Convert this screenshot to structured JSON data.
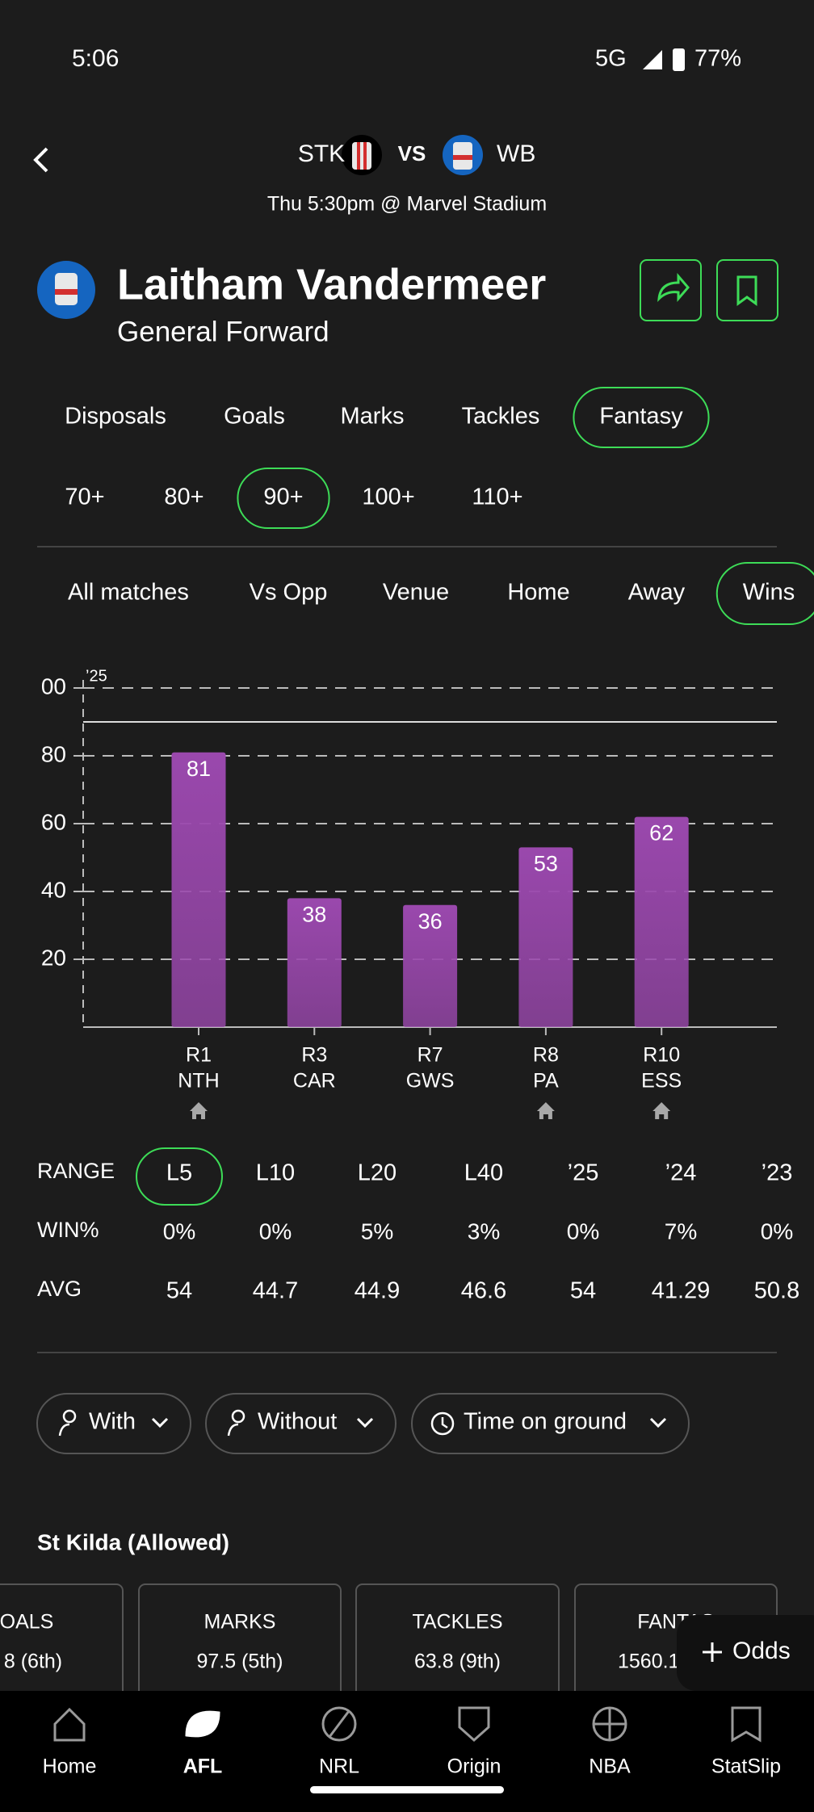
{
  "status_bar": {
    "time": "5:06",
    "network": "5G",
    "battery": "77%"
  },
  "match": {
    "home": "STK",
    "vs": "VS",
    "away": "WB",
    "details": "Thu 5:30pm @ Marvel Stadium"
  },
  "player": {
    "name": "Laitham Vandermeer",
    "position": "General Forward"
  },
  "stat_tabs": {
    "items": [
      "Disposals",
      "Goals",
      "Marks",
      "Tackles",
      "Fantasy"
    ],
    "selected": 4
  },
  "thresholds": {
    "items": [
      "70+",
      "80+",
      "90+",
      "100+",
      "110+"
    ],
    "selected": 2
  },
  "filters": {
    "items": [
      "All matches",
      "Vs Opp",
      "Venue",
      "Home",
      "Away",
      "Wins"
    ],
    "selected": 5
  },
  "chart_data": {
    "type": "bar",
    "season_label": "’25",
    "categories": [
      "R1",
      "R3",
      "R7",
      "R8",
      "R10"
    ],
    "opponents": [
      "NTH",
      "CAR",
      "GWS",
      "PA",
      "ESS"
    ],
    "home": [
      true,
      false,
      false,
      true,
      true
    ],
    "values": [
      81,
      38,
      36,
      53,
      62
    ],
    "color": "#9a48ad",
    "ylim": [
      0,
      100
    ],
    "yticks": [
      {
        "value": 100,
        "label": "00"
      },
      80,
      60,
      40,
      20
    ],
    "threshold": 90,
    "grid": true
  },
  "range_table": {
    "labels": [
      "RANGE",
      "WIN%",
      "AVG"
    ],
    "selected": 0,
    "columns": [
      {
        "range": "L5",
        "win": "0%",
        "avg": 54
      },
      {
        "range": "L10",
        "win": "0%",
        "avg": 44.7
      },
      {
        "range": "L20",
        "win": "5%",
        "avg": 44.9
      },
      {
        "range": "L40",
        "win": "3%",
        "avg": 46.6
      },
      {
        "range": "’25",
        "win": "0%",
        "avg": 54
      },
      {
        "range": "’24",
        "win": "7%",
        "avg": 41.29
      },
      {
        "range": "’23",
        "win": "0%",
        "avg": 50.8
      }
    ]
  },
  "chips": [
    "With",
    "Without",
    "Time on ground"
  ],
  "section_title": "St Kilda (Allowed)",
  "stat_cards": [
    {
      "label": "OALS",
      "value": "8 (6th)"
    },
    {
      "label": "MARKS",
      "value": "97.5 (5th)"
    },
    {
      "label": "TACKLES",
      "value": "63.8 (9th)"
    },
    {
      "label": "FANTAS",
      "value": "1560.1"
    }
  ],
  "odds_button": "Odds",
  "nav": {
    "items": [
      "Home",
      "AFL",
      "NRL",
      "Origin",
      "NBA",
      "StatSlip"
    ],
    "selected": 1
  }
}
